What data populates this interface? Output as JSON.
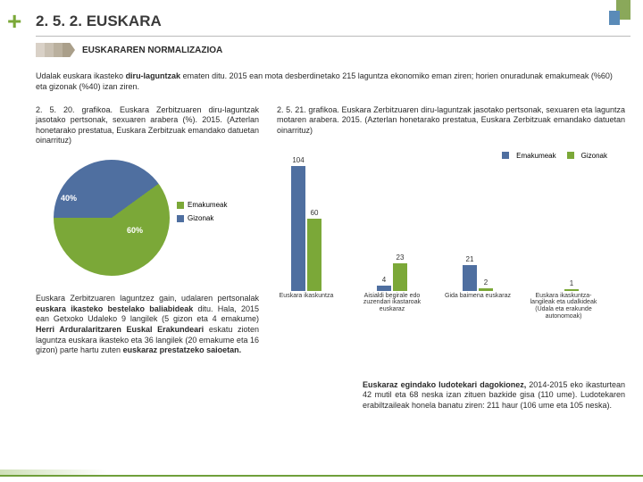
{
  "header": {
    "plus": "+",
    "title": "2. 5. 2.  EUSKARA",
    "subtitle": "EUSKARAREN NORMALIZAZIOA"
  },
  "intro": "Udalak euskara ikasteko diru-laguntzak ematen ditu. 2015 ean mota desberdinetako 215 laguntza ekonomiko eman ziren; horien onuradunak emakumeak (%60) eta gizonak (%40) izan ziren.",
  "pie": {
    "caption": "2. 5. 20. grafikoa. Euskara Zerbitzuaren diru-laguntzak jasotako pertsonak, sexuaren arabera (%). 2015. (Azterlan honetarako prestatua, Euskara Zerbitzuak emandako datuetan oinarrituz)",
    "slices": [
      {
        "label": "Emakumeak",
        "value": 60,
        "color": "#7ba838"
      },
      {
        "label": "Gizonak",
        "value": 40,
        "color": "#4f6fa0"
      }
    ],
    "label40": "40%",
    "label60": "60%"
  },
  "leftText": "Euskara Zerbitzuaren laguntzez gain, udalaren pertsonalak euskara ikasteko bestelako baliabideak ditu. Hala, 2015 ean Getxoko Udaleko 9 langilek (5 gizon eta 4 emakume) Herri Arduralaritzaren Euskal Erakundeari eskatu zioten laguntza euskara ikasteko eta 36 langilek (20 emakume eta 16 gizon) parte hartu zuten euskaraz prestatzeko saioetan.",
  "bar": {
    "caption": "2. 5. 21. grafikoa. Euskara Zerbitzuaren diru-laguntzak jasotako pertsonak, sexuaren eta laguntza motaren arabera. 2015. (Azterlan honetarako prestatua, Euskara Zerbitzuak emandako datuetan oinarrituz)",
    "legend": {
      "women": "Emakumeak",
      "men": "Gizonak"
    },
    "colors": {
      "women": "#4f6fa0",
      "men": "#7ba838"
    },
    "ymax": 104,
    "categories": [
      {
        "label": "Euskara ikaskuntza",
        "women": 104,
        "men": 60
      },
      {
        "label": "Aisialdi begirale edo zuzendari ikastaroak euskaraz",
        "women": 4,
        "men": 23
      },
      {
        "label": "Gida baimena euskaraz",
        "women": 21,
        "men": 2
      },
      {
        "label": "Euskara ikaskuntza- langileak eta udalkideak (Udala eta erakunde autonomoak)",
        "women": 0,
        "men": 1
      }
    ]
  },
  "rightText": "Euskaraz egindako ludotekari dagokionez, 2014-2015 eko ikasturtean 42 mutil eta 68 neska izan zituen bazkide gisa (110 ume). Ludotekaren erabiltzaileak honela banatu ziren: 211 haur (106 ume eta 105 neska).",
  "styling": {
    "background": "#ffffff",
    "accent_green": "#7ba838",
    "accent_blue": "#4f6fa0",
    "title_fontsize": 17,
    "caption_fontsize": 9,
    "axis_fontsize": 8
  },
  "arrow_colors": [
    "#d9d1c7",
    "#c9c0b2",
    "#bab09e",
    "#aa9f8a"
  ]
}
